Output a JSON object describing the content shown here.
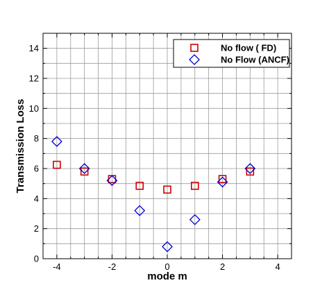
{
  "chart_data": {
    "type": "scatter",
    "title": "",
    "xlabel": "mode m",
    "ylabel": "Transmission Loss",
    "xlim": [
      -4.5,
      4.5
    ],
    "ylim": [
      0,
      15
    ],
    "xticks": [
      -4,
      -2,
      0,
      2,
      4
    ],
    "yticks": [
      0,
      2,
      4,
      6,
      8,
      10,
      12,
      14
    ],
    "x_minor_step": 0.5,
    "y_minor_step": 1,
    "grid": true,
    "legend_position": "top-right",
    "series": [
      {
        "name": "No flow ( FD)",
        "marker": "square",
        "color": "#cc0000",
        "x": [
          -4,
          -3,
          -2,
          -1,
          0,
          1,
          2,
          3
        ],
        "y": [
          6.25,
          5.8,
          5.3,
          4.85,
          4.6,
          4.85,
          5.3,
          5.8
        ]
      },
      {
        "name": "No Flow (ANCF)",
        "marker": "diamond",
        "color": "#0000cc",
        "x": [
          -4,
          -3,
          -2,
          -1,
          0,
          1,
          2,
          3
        ],
        "y": [
          7.8,
          6.0,
          5.2,
          3.2,
          0.8,
          2.6,
          5.1,
          6.0
        ]
      }
    ]
  }
}
